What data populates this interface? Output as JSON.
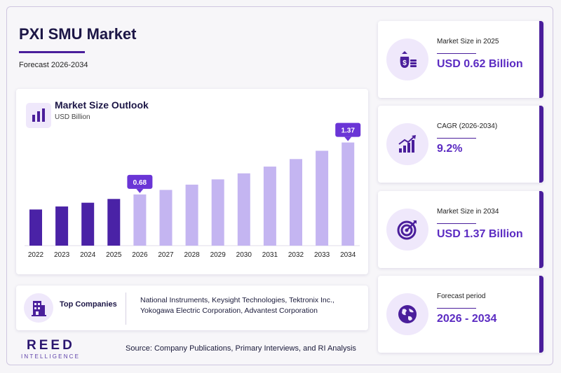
{
  "header": {
    "title": "PXI SMU Market",
    "subtitle": "Forecast 2026-2034"
  },
  "chart_panel": {
    "title": "Market Size Outlook",
    "unit": "USD Billion"
  },
  "chart_data": {
    "type": "bar",
    "title": "Market Size Outlook",
    "ylabel": "USD Billion",
    "categories": [
      "2022",
      "2023",
      "2024",
      "2025",
      "2026",
      "2027",
      "2028",
      "2029",
      "2030",
      "2031",
      "2032",
      "2033",
      "2034"
    ],
    "values": [
      0.48,
      0.52,
      0.57,
      0.62,
      0.68,
      0.74,
      0.81,
      0.88,
      0.96,
      1.05,
      1.15,
      1.26,
      1.37
    ],
    "historical_color": "#4a22a6",
    "forecast_color": "#c4b5f1",
    "callouts": [
      {
        "category": "2026",
        "label": "0.68"
      },
      {
        "category": "2034",
        "label": "1.37"
      }
    ],
    "callout_color": "#6a35d6",
    "ylim": [
      0,
      1.45
    ],
    "grid": false,
    "legend": "none"
  },
  "companies": {
    "label": "Top Companies",
    "text": "National Instruments, Keysight Technologies, Tektronix Inc., Yokogawa Electric Corporation, Advantest Corporation"
  },
  "logo": {
    "main": "REED",
    "sub": "INTELLIGENCE"
  },
  "source": "Source: Company Publications, Primary Interviews, and RI Analysis",
  "stats": [
    {
      "label": "Market Size in 2025",
      "value": "USD 0.62 Billion",
      "icon": "money-bag-icon"
    },
    {
      "label": "CAGR (2026-2034)",
      "value": "9.2%",
      "icon": "growth-chart-icon"
    },
    {
      "label": "Market Size in 2034",
      "value": "USD 1.37 Billion",
      "icon": "target-icon"
    },
    {
      "label": "Forecast period",
      "value": "2026 - 2034",
      "icon": "globe-icon"
    }
  ],
  "colors": {
    "accent": "#4a1e9b",
    "value_text": "#5b2bc2",
    "icon_bg": "#efe8fb"
  }
}
